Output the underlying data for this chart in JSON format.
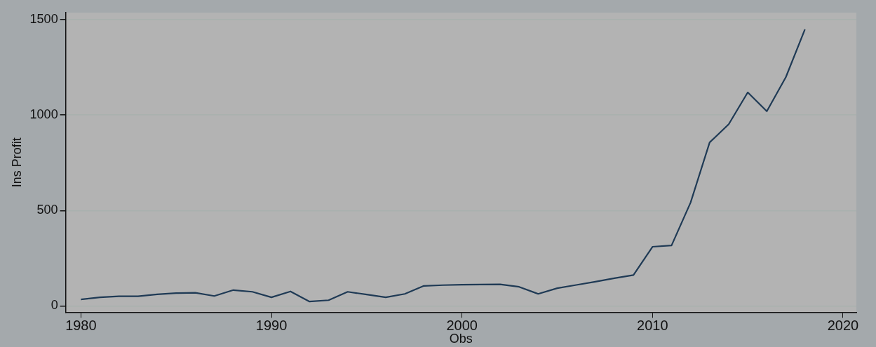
{
  "chart_data": {
    "type": "line",
    "xlabel": "Obs",
    "ylabel": "Ins Profit",
    "x": [
      1980,
      1981,
      1982,
      1983,
      1984,
      1985,
      1986,
      1987,
      1988,
      1989,
      1990,
      1991,
      1992,
      1993,
      1994,
      1995,
      1996,
      1997,
      1998,
      1999,
      2000,
      2001,
      2002,
      2003,
      2004,
      2005,
      2006,
      2007,
      2008,
      2009,
      2010,
      2011,
      2012,
      2013,
      2014,
      2015,
      2016,
      2017,
      2018
    ],
    "series": [
      {
        "color": "#1f3a55",
        "values": [
          34,
          45,
          51,
          51,
          61,
          67,
          69,
          52,
          83,
          74,
          45,
          76,
          23,
          30,
          74,
          60,
          45,
          63,
          105,
          109,
          111,
          112,
          113,
          100,
          63,
          93,
          110,
          127,
          145,
          162,
          310,
          317,
          542,
          857,
          952,
          1119,
          1020,
          1199,
          1449
        ]
      }
    ],
    "xlim": [
      1979.2,
      2020.7
    ],
    "xticks": [
      1980,
      1990,
      2000,
      2010,
      2020
    ],
    "ylim": [
      -33,
      1537
    ],
    "yticks": [
      0,
      500,
      1000,
      1500
    ],
    "grid": "y",
    "legend": false,
    "marker": "none",
    "line_style": "solid"
  }
}
